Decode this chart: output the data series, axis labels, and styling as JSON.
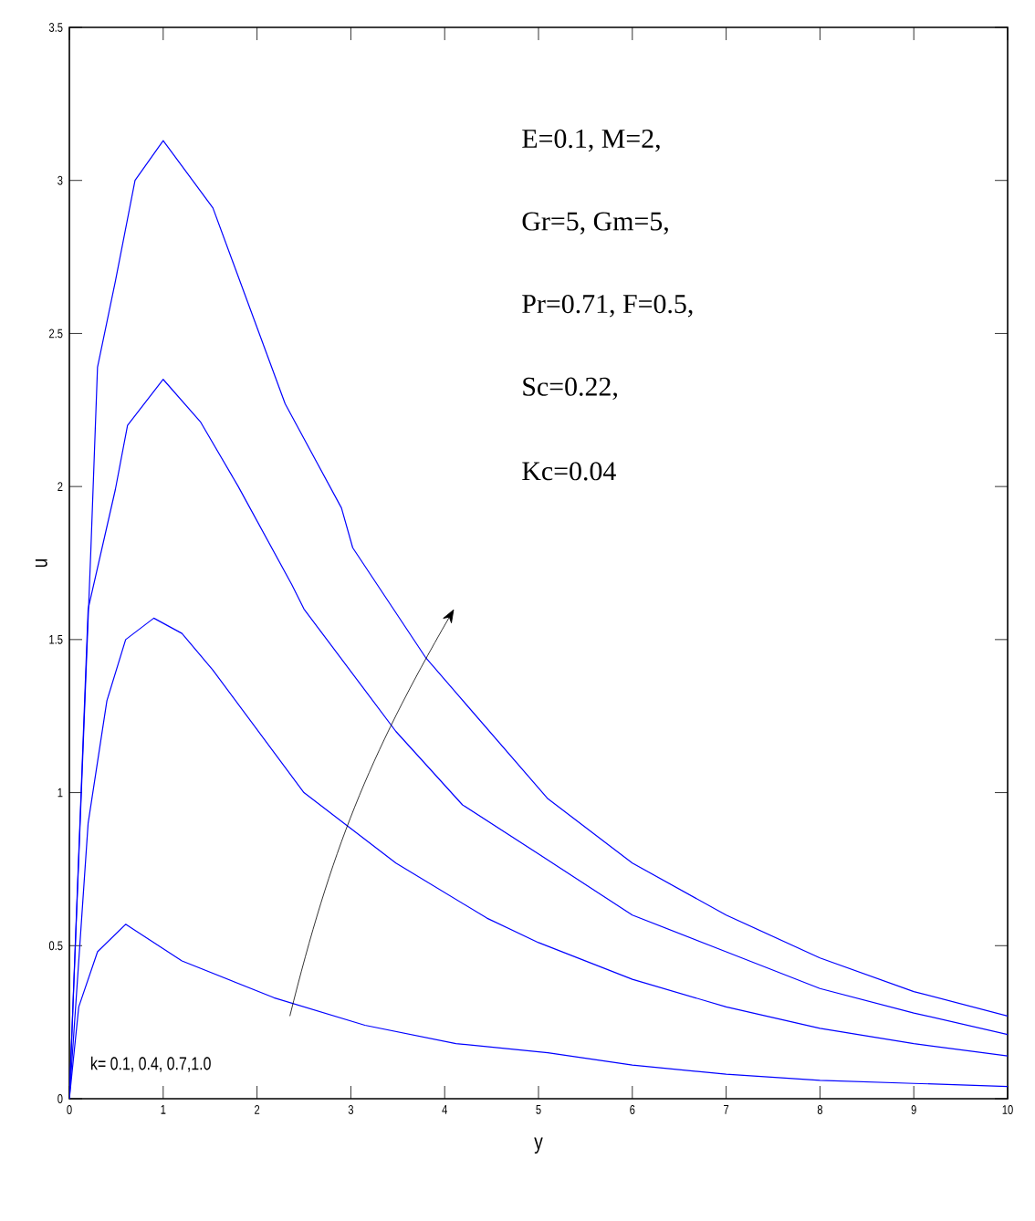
{
  "chart_data": {
    "type": "line",
    "xlabel": "y",
    "ylabel": "u",
    "xlim": [
      0,
      10
    ],
    "ylim": [
      0,
      3.5
    ],
    "xticks": [
      0,
      1,
      2,
      3,
      4,
      5,
      6,
      7,
      8,
      9,
      10
    ],
    "yticks": [
      0,
      0.5,
      1,
      1.5,
      2,
      2.5,
      3,
      3.5
    ],
    "annotations": [
      "E=0.1,    M=2,",
      "Gr=5,     Gm=5,",
      "Pr=0.71, F=0.5,",
      "Sc=0.22,",
      "Kc=0.04",
      "k= 0.1, 0.4, 0.7,1.0"
    ],
    "series": [
      {
        "color": "#0000ff",
        "x": [
          0,
          0.1,
          0.3,
          0.6,
          1.2,
          2.18,
          3.15,
          4.12,
          5.1,
          6,
          7,
          8,
          9,
          10
        ],
        "values": [
          0,
          0.3,
          0.48,
          0.57,
          0.45,
          0.33,
          0.24,
          0.18,
          0.15,
          0.11,
          0.08,
          0.06,
          0.05,
          0.04
        ]
      },
      {
        "color": "#0000ff",
        "x": [
          0,
          0.2,
          0.4,
          0.6,
          0.9,
          1.2,
          1.53,
          2.5,
          3.48,
          4.45,
          5,
          6,
          7,
          8,
          9,
          10
        ],
        "values": [
          0,
          0.9,
          1.3,
          1.5,
          1.57,
          1.52,
          1.4,
          1.0,
          0.77,
          0.59,
          0.51,
          0.39,
          0.3,
          0.23,
          0.18,
          0.14
        ]
      },
      {
        "color": "#0000ff",
        "x": [
          0,
          0.2,
          0.49,
          0.62,
          1.0,
          1.4,
          1.8,
          2.37,
          2.5,
          3.48,
          4.19,
          5,
          6,
          7,
          8,
          9,
          10
        ],
        "values": [
          0,
          1.6,
          1.99,
          2.2,
          2.35,
          2.21,
          2.0,
          1.68,
          1.6,
          1.2,
          0.96,
          0.8,
          0.6,
          0.48,
          0.36,
          0.28,
          0.21
        ]
      },
      {
        "color": "#0000ff",
        "x": [
          0,
          0.23,
          0.3,
          0.49,
          0.7,
          1.0,
          1.53,
          2.3,
          2.9,
          3.02,
          3.8,
          5.1,
          6,
          7,
          8,
          9,
          10
        ],
        "values": [
          0,
          1.8,
          2.39,
          2.67,
          3.0,
          3.13,
          2.91,
          2.27,
          1.93,
          1.8,
          1.44,
          0.98,
          0.77,
          0.6,
          0.46,
          0.35,
          0.27
        ]
      }
    ]
  }
}
